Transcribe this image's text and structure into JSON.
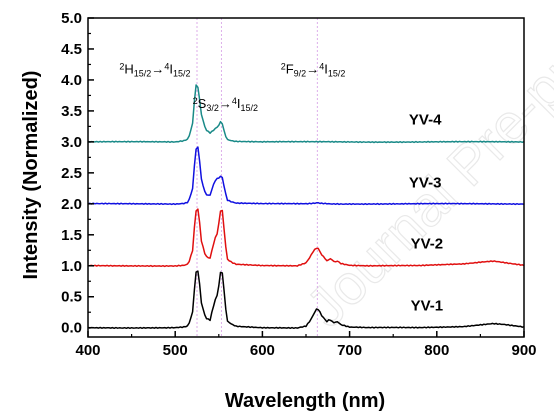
{
  "chart_data": {
    "type": "line",
    "xlabel": "Wavelength (nm)",
    "ylabel": "Intensity (Normalized)",
    "xlim": [
      400,
      900
    ],
    "ylim": [
      -0.15,
      5.0
    ],
    "xticks": [
      "400",
      "500",
      "600",
      "700",
      "800",
      "900"
    ],
    "yticks": [
      "0.0",
      "0.5",
      "1.0",
      "1.5",
      "2.0",
      "2.5",
      "3.0",
      "3.5",
      "4.0",
      "4.5",
      "5.0"
    ],
    "grid": false,
    "annotations": [
      {
        "parts": [
          [
            "2",
            "sup"
          ],
          [
            "H",
            "n"
          ],
          [
            "15/2",
            "sub"
          ],
          [
            "→",
            "n"
          ],
          [
            "4",
            "sup"
          ],
          [
            "I",
            "n"
          ],
          [
            "15/2",
            "sub"
          ]
        ]
      },
      {
        "parts": [
          [
            "2",
            "sup"
          ],
          [
            "S",
            "n"
          ],
          [
            "3/2",
            "sub"
          ],
          [
            "→",
            "n"
          ],
          [
            "4",
            "sup"
          ],
          [
            "I",
            "n"
          ],
          [
            "15/2",
            "sub"
          ]
        ]
      },
      {
        "parts": [
          [
            "2",
            "sup"
          ],
          [
            "F",
            "n"
          ],
          [
            "9/2",
            "sub"
          ],
          [
            "→",
            "n"
          ],
          [
            "4",
            "sup"
          ],
          [
            "I",
            "n"
          ],
          [
            "15/2",
            "sub"
          ]
        ]
      }
    ],
    "reference_lines_x": [
      525,
      553,
      663
    ],
    "series": [
      {
        "name": "YV-1",
        "color": "#000000",
        "offset": 0.0,
        "x": [
          400,
          500,
          510,
          515,
          520,
          523,
          525,
          527,
          530,
          535,
          540,
          543,
          546,
          549,
          551,
          553,
          555,
          557,
          560,
          565,
          570,
          600,
          640,
          650,
          655,
          658,
          661,
          663,
          665,
          668,
          671,
          674,
          677,
          680,
          683,
          686,
          690,
          700,
          720,
          780,
          830,
          850,
          865,
          880,
          900
        ],
        "y": [
          0.0,
          0.0,
          0.01,
          0.03,
          0.25,
          0.8,
          0.98,
          0.85,
          0.4,
          0.15,
          0.12,
          0.3,
          0.45,
          0.55,
          0.8,
          0.97,
          0.8,
          0.4,
          0.1,
          0.05,
          0.02,
          0.0,
          0.0,
          0.03,
          0.12,
          0.2,
          0.28,
          0.32,
          0.28,
          0.2,
          0.15,
          0.1,
          0.14,
          0.1,
          0.08,
          0.1,
          0.05,
          0.01,
          0.0,
          0.0,
          0.02,
          0.05,
          0.07,
          0.05,
          0.01
        ]
      },
      {
        "name": "YV-2",
        "color": "#e01010",
        "offset": 1.0,
        "x": [
          400,
          500,
          510,
          515,
          520,
          523,
          525,
          527,
          530,
          535,
          540,
          543,
          546,
          549,
          551,
          553,
          555,
          557,
          560,
          565,
          570,
          600,
          640,
          650,
          655,
          658,
          661,
          663,
          665,
          668,
          671,
          674,
          677,
          680,
          683,
          686,
          690,
          700,
          720,
          780,
          830,
          850,
          865,
          880,
          900
        ],
        "y": [
          0.0,
          0.0,
          0.01,
          0.03,
          0.25,
          0.8,
          0.98,
          0.85,
          0.4,
          0.15,
          0.12,
          0.3,
          0.45,
          0.55,
          0.8,
          0.97,
          0.8,
          0.4,
          0.1,
          0.05,
          0.02,
          0.0,
          0.0,
          0.05,
          0.15,
          0.23,
          0.28,
          0.3,
          0.26,
          0.18,
          0.14,
          0.08,
          0.12,
          0.1,
          0.06,
          0.08,
          0.04,
          0.01,
          0.0,
          0.0,
          0.03,
          0.06,
          0.08,
          0.05,
          0.01
        ]
      },
      {
        "name": "YV-3",
        "color": "#1010e0",
        "offset": 2.0,
        "x": [
          400,
          500,
          510,
          515,
          520,
          523,
          525,
          527,
          530,
          535,
          540,
          543,
          546,
          549,
          551,
          553,
          555,
          557,
          560,
          565,
          570,
          600,
          650,
          660,
          663,
          666,
          680,
          900
        ],
        "y": [
          0.0,
          0.0,
          0.01,
          0.03,
          0.25,
          0.8,
          0.98,
          0.85,
          0.4,
          0.15,
          0.14,
          0.28,
          0.38,
          0.42,
          0.42,
          0.47,
          0.38,
          0.2,
          0.06,
          0.03,
          0.01,
          0.0,
          0.0,
          0.01,
          0.02,
          0.01,
          0.0,
          0.0
        ]
      },
      {
        "name": "YV-4",
        "color": "#1a8a88",
        "offset": 3.0,
        "x": [
          400,
          500,
          510,
          515,
          520,
          523,
          525,
          527,
          530,
          535,
          540,
          543,
          546,
          549,
          551,
          553,
          555,
          557,
          560,
          565,
          570,
          600,
          650,
          900
        ],
        "y": [
          0.0,
          0.0,
          0.02,
          0.05,
          0.3,
          0.85,
          0.98,
          0.8,
          0.45,
          0.2,
          0.15,
          0.18,
          0.22,
          0.25,
          0.3,
          0.35,
          0.25,
          0.12,
          0.04,
          0.02,
          0.01,
          0.0,
          0.0,
          0.0
        ]
      }
    ]
  }
}
